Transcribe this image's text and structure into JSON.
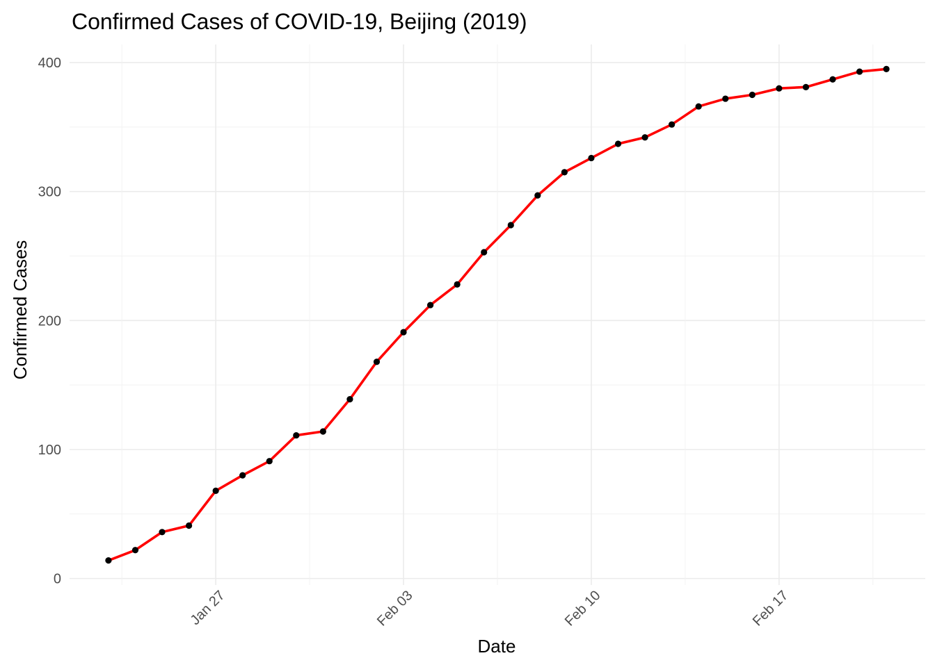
{
  "chart_data": {
    "type": "line",
    "title": "Confirmed Cases of COVID-19, Beijing (2019)",
    "xlabel": "Date",
    "ylabel": "Confirmed Cases",
    "x_tick_labels": [
      "Jan 27",
      "Feb 03",
      "Feb 10",
      "Feb 17"
    ],
    "x_tick_dates": [
      "2020-01-27",
      "2020-02-03",
      "2020-02-10",
      "2020-02-17"
    ],
    "y_ticks": [
      0,
      100,
      200,
      300,
      400
    ],
    "ylim": [
      0,
      400
    ],
    "grid": true,
    "line_color": "#ff0000",
    "point_color": "#000000",
    "x": [
      "2020-01-23",
      "2020-01-24",
      "2020-01-25",
      "2020-01-26",
      "2020-01-27",
      "2020-01-28",
      "2020-01-29",
      "2020-01-30",
      "2020-01-31",
      "2020-02-01",
      "2020-02-02",
      "2020-02-03",
      "2020-02-04",
      "2020-02-05",
      "2020-02-06",
      "2020-02-07",
      "2020-02-08",
      "2020-02-09",
      "2020-02-10",
      "2020-02-11",
      "2020-02-12",
      "2020-02-13",
      "2020-02-14",
      "2020-02-15",
      "2020-02-16",
      "2020-02-17",
      "2020-02-18",
      "2020-02-19",
      "2020-02-20",
      "2020-02-21"
    ],
    "values": [
      14,
      22,
      36,
      41,
      68,
      80,
      91,
      111,
      114,
      139,
      168,
      191,
      212,
      228,
      253,
      274,
      297,
      315,
      326,
      337,
      342,
      352,
      366,
      372,
      375,
      380,
      381,
      387,
      393,
      395
    ]
  }
}
